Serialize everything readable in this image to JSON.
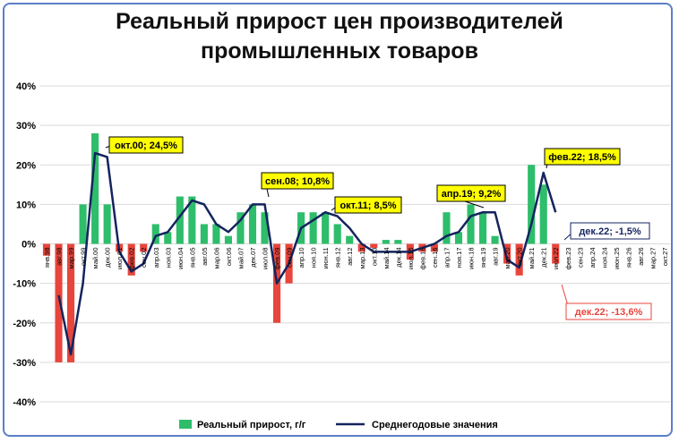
{
  "chart_data": {
    "type": "bar_line",
    "title": "Реальный прирост цен производителей промышленных товаров",
    "categories": [
      "янв.98",
      "авг.98",
      "мар.99",
      "окт.99",
      "май.00",
      "дек.00",
      "июл.01",
      "фев.02",
      "сен.02",
      "апр.03",
      "ноя.03",
      "июн.04",
      "янв.05",
      "авг.05",
      "мар.06",
      "окт.06",
      "май.07",
      "дек.07",
      "июл.08",
      "фев.09",
      "сен.09",
      "апр.10",
      "ноя.10",
      "июн.11",
      "янв.12",
      "авг.12",
      "мар.13",
      "окт.13",
      "май.14",
      "дек.14",
      "июл.15",
      "фев.16",
      "сен.16",
      "апр.17",
      "ноя.17",
      "июн.18",
      "янв.19",
      "авг.19",
      "мар.20",
      "окт.20",
      "май.21",
      "дек.21",
      "июл.22",
      "фев.23",
      "сен.23",
      "апр.24",
      "ноя.24",
      "июн.25",
      "янв.26",
      "авг.26",
      "мар.27",
      "окт.27"
    ],
    "series": [
      {
        "name": "Реальный прирост, г/г",
        "type": "bar",
        "color": "#2ebd6b",
        "negative_color": "#e8453c",
        "values": [
          -3,
          -30,
          -30,
          10,
          28,
          10,
          -2,
          -8,
          -2,
          5,
          3,
          12,
          12,
          5,
          5,
          2,
          8,
          10,
          8,
          -20,
          -10,
          8,
          8,
          8,
          5,
          2,
          -2,
          -1,
          1,
          1,
          -4,
          -2,
          -2,
          8,
          3,
          10,
          8,
          2,
          -5,
          -8,
          20,
          15,
          -5,
          null,
          null,
          null,
          null,
          null,
          null,
          null,
          null,
          null
        ]
      },
      {
        "name": "Среднегодовые значения",
        "type": "line",
        "color": "#14245e",
        "values": [
          null,
          -13,
          -28,
          -10,
          23,
          22,
          -2,
          -7,
          -5,
          2,
          3,
          7,
          11,
          10,
          5,
          3,
          6,
          10,
          10,
          -10,
          -5,
          4,
          6,
          8,
          7,
          4,
          0,
          -2,
          -2,
          -2,
          -2,
          -1,
          0,
          2,
          3,
          7,
          8,
          8,
          -4,
          -6,
          5,
          18,
          8,
          null,
          null,
          null,
          null,
          null,
          null,
          null,
          null,
          null
        ]
      }
    ],
    "annotations": [
      "окт.00; 24,5%",
      "сен.08; 10,8%",
      "окт.11; 8,5%",
      "апр.19; 9,2%",
      "фев.22; 18,5%",
      "дек.22; -1,5%",
      "дек.22; -13,6%"
    ],
    "ylim": [
      -40,
      40
    ],
    "yticks": [
      {
        "value": -40,
        "label": "-40%"
      },
      {
        "value": -30,
        "label": "-30%"
      },
      {
        "value": -20,
        "label": "-20%"
      },
      {
        "value": -10,
        "label": "-10%"
      },
      {
        "value": 0,
        "label": "0%"
      },
      {
        "value": 10,
        "label": "10%"
      },
      {
        "value": 20,
        "label": "20%"
      },
      {
        "value": 30,
        "label": "30%"
      },
      {
        "value": 40,
        "label": "40%"
      }
    ],
    "grid": true
  }
}
